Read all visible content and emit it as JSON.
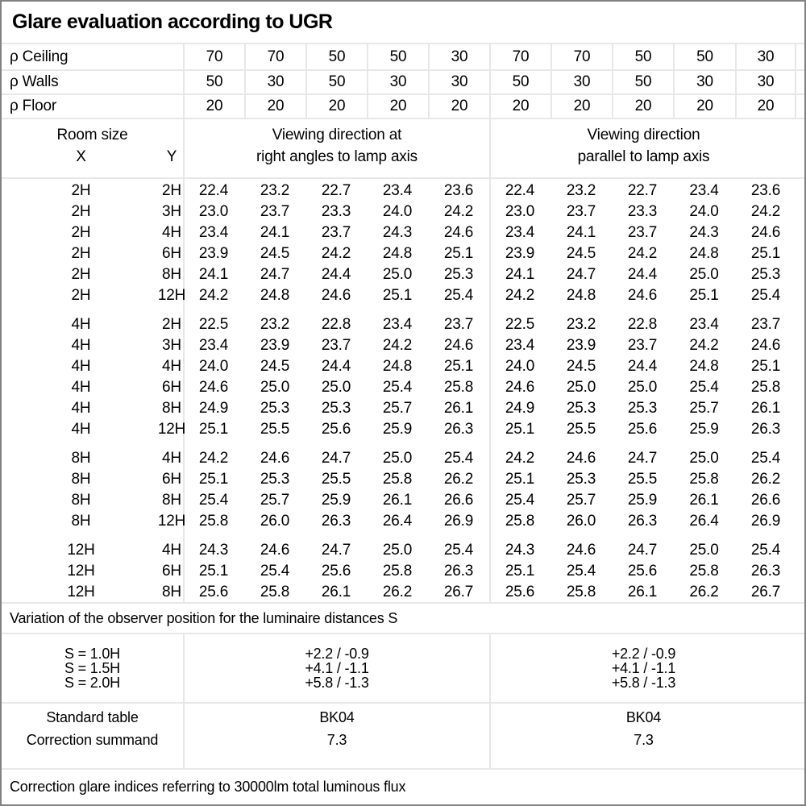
{
  "title": "Glare evaluation according to UGR",
  "reflectance_rows": [
    {
      "label": "ρ Ceiling",
      "values": [
        "70",
        "70",
        "50",
        "50",
        "30",
        "70",
        "70",
        "50",
        "50",
        "30"
      ]
    },
    {
      "label": "ρ Walls",
      "values": [
        "50",
        "30",
        "50",
        "30",
        "30",
        "50",
        "30",
        "50",
        "30",
        "30"
      ]
    },
    {
      "label": "ρ Floor",
      "values": [
        "20",
        "20",
        "20",
        "20",
        "20",
        "20",
        "20",
        "20",
        "20",
        "20"
      ]
    }
  ],
  "header": {
    "room_size_label": "Room size",
    "x_label": "X",
    "y_label": "Y",
    "group1_line1": "Viewing direction at",
    "group1_line2": "right angles to lamp axis",
    "group2_line1": "Viewing direction",
    "group2_line2": "parallel to lamp axis"
  },
  "ugr_blocks": [
    {
      "rows": [
        {
          "x": "2H",
          "y": "2H",
          "values": [
            "22.4",
            "23.2",
            "22.7",
            "23.4",
            "23.6",
            "22.4",
            "23.2",
            "22.7",
            "23.4",
            "23.6"
          ]
        },
        {
          "x": "2H",
          "y": "3H",
          "values": [
            "23.0",
            "23.7",
            "23.3",
            "24.0",
            "24.2",
            "23.0",
            "23.7",
            "23.3",
            "24.0",
            "24.2"
          ]
        },
        {
          "x": "2H",
          "y": "4H",
          "values": [
            "23.4",
            "24.1",
            "23.7",
            "24.3",
            "24.6",
            "23.4",
            "24.1",
            "23.7",
            "24.3",
            "24.6"
          ]
        },
        {
          "x": "2H",
          "y": "6H",
          "values": [
            "23.9",
            "24.5",
            "24.2",
            "24.8",
            "25.1",
            "23.9",
            "24.5",
            "24.2",
            "24.8",
            "25.1"
          ]
        },
        {
          "x": "2H",
          "y": "8H",
          "values": [
            "24.1",
            "24.7",
            "24.4",
            "25.0",
            "25.3",
            "24.1",
            "24.7",
            "24.4",
            "25.0",
            "25.3"
          ]
        },
        {
          "x": "2H",
          "y": "12H",
          "values": [
            "24.2",
            "24.8",
            "24.6",
            "25.1",
            "25.4",
            "24.2",
            "24.8",
            "24.6",
            "25.1",
            "25.4"
          ]
        }
      ]
    },
    {
      "rows": [
        {
          "x": "4H",
          "y": "2H",
          "values": [
            "22.5",
            "23.2",
            "22.8",
            "23.4",
            "23.7",
            "22.5",
            "23.2",
            "22.8",
            "23.4",
            "23.7"
          ]
        },
        {
          "x": "4H",
          "y": "3H",
          "values": [
            "23.4",
            "23.9",
            "23.7",
            "24.2",
            "24.6",
            "23.4",
            "23.9",
            "23.7",
            "24.2",
            "24.6"
          ]
        },
        {
          "x": "4H",
          "y": "4H",
          "values": [
            "24.0",
            "24.5",
            "24.4",
            "24.8",
            "25.1",
            "24.0",
            "24.5",
            "24.4",
            "24.8",
            "25.1"
          ]
        },
        {
          "x": "4H",
          "y": "6H",
          "values": [
            "24.6",
            "25.0",
            "25.0",
            "25.4",
            "25.8",
            "24.6",
            "25.0",
            "25.0",
            "25.4",
            "25.8"
          ]
        },
        {
          "x": "4H",
          "y": "8H",
          "values": [
            "24.9",
            "25.3",
            "25.3",
            "25.7",
            "26.1",
            "24.9",
            "25.3",
            "25.3",
            "25.7",
            "26.1"
          ]
        },
        {
          "x": "4H",
          "y": "12H",
          "values": [
            "25.1",
            "25.5",
            "25.6",
            "25.9",
            "26.3",
            "25.1",
            "25.5",
            "25.6",
            "25.9",
            "26.3"
          ]
        }
      ]
    },
    {
      "rows": [
        {
          "x": "8H",
          "y": "4H",
          "values": [
            "24.2",
            "24.6",
            "24.7",
            "25.0",
            "25.4",
            "24.2",
            "24.6",
            "24.7",
            "25.0",
            "25.4"
          ]
        },
        {
          "x": "8H",
          "y": "6H",
          "values": [
            "25.1",
            "25.3",
            "25.5",
            "25.8",
            "26.2",
            "25.1",
            "25.3",
            "25.5",
            "25.8",
            "26.2"
          ]
        },
        {
          "x": "8H",
          "y": "8H",
          "values": [
            "25.4",
            "25.7",
            "25.9",
            "26.1",
            "26.6",
            "25.4",
            "25.7",
            "25.9",
            "26.1",
            "26.6"
          ]
        },
        {
          "x": "8H",
          "y": "12H",
          "values": [
            "25.8",
            "26.0",
            "26.3",
            "26.4",
            "26.9",
            "25.8",
            "26.0",
            "26.3",
            "26.4",
            "26.9"
          ]
        }
      ]
    },
    {
      "rows": [
        {
          "x": "12H",
          "y": "4H",
          "values": [
            "24.3",
            "24.6",
            "24.7",
            "25.0",
            "25.4",
            "24.3",
            "24.6",
            "24.7",
            "25.0",
            "25.4"
          ]
        },
        {
          "x": "12H",
          "y": "6H",
          "values": [
            "25.1",
            "25.4",
            "25.6",
            "25.8",
            "26.3",
            "25.1",
            "25.4",
            "25.6",
            "25.8",
            "26.3"
          ]
        },
        {
          "x": "12H",
          "y": "8H",
          "values": [
            "25.6",
            "25.8",
            "26.1",
            "26.2",
            "26.7",
            "25.6",
            "25.8",
            "26.1",
            "26.2",
            "26.7"
          ]
        }
      ]
    }
  ],
  "variation_note": "Variation of the observer position for the luminaire distances S",
  "s_variation": {
    "labels": [
      "S = 1.0H",
      "S = 1.5H",
      "S = 2.0H"
    ],
    "right_angles": [
      "+2.2 / -0.9",
      "+4.1 / -1.1",
      "+5.8 / -1.3"
    ],
    "parallel": [
      "+2.2 / -0.9",
      "+4.1 / -1.1",
      "+5.8 / -1.3"
    ]
  },
  "summary": {
    "row_labels": [
      "Standard table",
      "Correction summand"
    ],
    "right_angles": [
      "BK04",
      "7.3"
    ],
    "parallel": [
      "BK04",
      "7.3"
    ]
  },
  "footer_note": "Correction glare indices referring to 30000lm total luminous flux",
  "colors": {
    "outer_border": "#828282",
    "grid_line": "#e7e7e7",
    "text": "#000000",
    "background": "#ffffff"
  }
}
